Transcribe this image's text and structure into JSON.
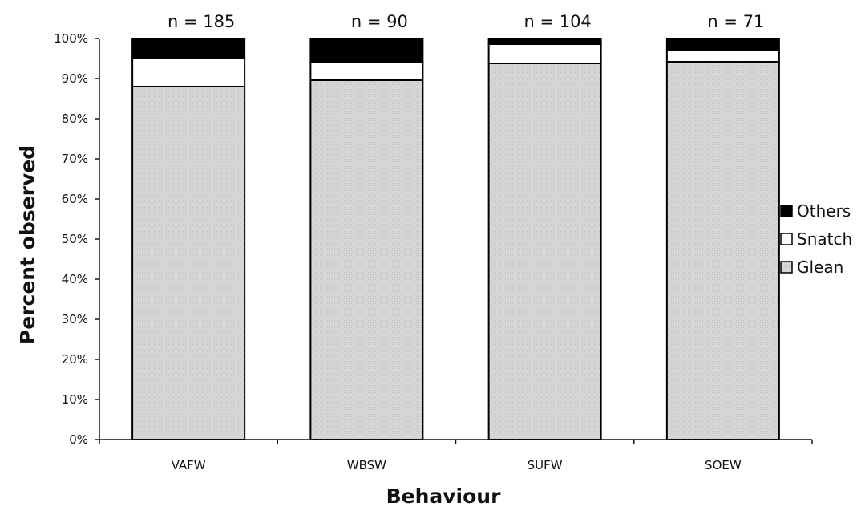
{
  "chart_data": {
    "type": "bar",
    "stacked": true,
    "categories": [
      "VAFW",
      "WBSW",
      "SUFW",
      "SOEW"
    ],
    "sample_sizes": [
      "n = 185",
      "n = 90",
      "n = 104",
      "n = 71"
    ],
    "series": [
      {
        "name": "Glean",
        "values": [
          88,
          89.6,
          93.8,
          94.2
        ],
        "color": "#d8d8d8"
      },
      {
        "name": "Snatch",
        "values": [
          7,
          4.6,
          4.8,
          2.9
        ],
        "color": "#ffffff"
      },
      {
        "name": "Others",
        "values": [
          5,
          5.8,
          1.4,
          2.9
        ],
        "color": "#000000"
      }
    ],
    "legend_order": [
      "Others",
      "Snatch",
      "Glean"
    ],
    "xlabel": "Behaviour",
    "ylabel": "Percent observed",
    "ylim": [
      0,
      100
    ],
    "yticks": [
      "0%",
      "10%",
      "20%",
      "30%",
      "40%",
      "50%",
      "60%",
      "70%",
      "80%",
      "90%",
      "100%"
    ],
    "legend_position": "right",
    "grid": false
  }
}
